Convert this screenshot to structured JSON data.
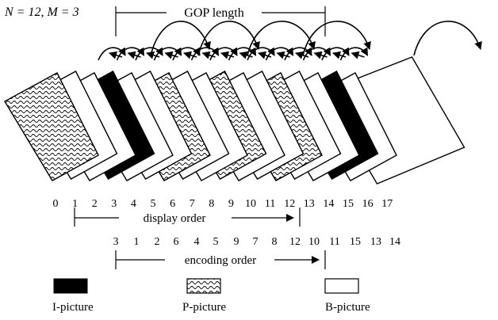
{
  "header": {
    "params": "N = 12, M = 3",
    "gop_label": "GOP length"
  },
  "frames": {
    "types": [
      "P",
      "B",
      "B",
      "I",
      "B",
      "B",
      "P",
      "B",
      "B",
      "P",
      "B",
      "B",
      "P",
      "B",
      "B",
      "I",
      "B",
      "B"
    ]
  },
  "display_order": {
    "numbers": [
      "0",
      "1",
      "2",
      "3",
      "4",
      "5",
      "6",
      "7",
      "8",
      "9",
      "10",
      "11",
      "12",
      "13",
      "14",
      "15",
      "16",
      "17"
    ],
    "label": "display order"
  },
  "encoding_order": {
    "numbers": [
      "3",
      "1",
      "2",
      "6",
      "4",
      "5",
      "9",
      "7",
      "8",
      "12",
      "10",
      "11",
      "15",
      "13",
      "14"
    ],
    "label": "encoding order"
  },
  "legend": {
    "i_picture": "I-picture",
    "p_picture": "P-picture",
    "b_picture": "B-picture"
  }
}
